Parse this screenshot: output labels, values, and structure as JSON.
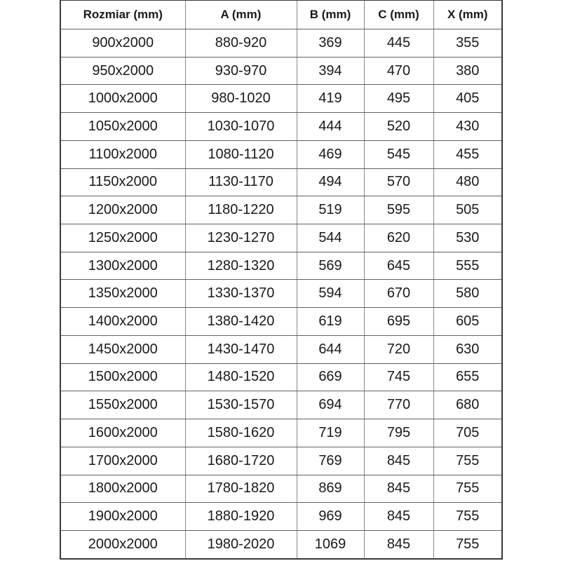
{
  "table": {
    "columns": [
      "Rozmiar (mm)",
      "A (mm)",
      "B (mm)",
      "C (mm)",
      "X (mm)"
    ],
    "rows": [
      [
        "900x2000",
        "880-920",
        "369",
        "445",
        "355"
      ],
      [
        "950x2000",
        "930-970",
        "394",
        "470",
        "380"
      ],
      [
        "1000x2000",
        "980-1020",
        "419",
        "495",
        "405"
      ],
      [
        "1050x2000",
        "1030-1070",
        "444",
        "520",
        "430"
      ],
      [
        "1100x2000",
        "1080-1120",
        "469",
        "545",
        "455"
      ],
      [
        "1150x2000",
        "1130-1170",
        "494",
        "570",
        "480"
      ],
      [
        "1200x2000",
        "1180-1220",
        "519",
        "595",
        "505"
      ],
      [
        "1250x2000",
        "1230-1270",
        "544",
        "620",
        "530"
      ],
      [
        "1300x2000",
        "1280-1320",
        "569",
        "645",
        "555"
      ],
      [
        "1350x2000",
        "1330-1370",
        "594",
        "670",
        "580"
      ],
      [
        "1400x2000",
        "1380-1420",
        "619",
        "695",
        "605"
      ],
      [
        "1450x2000",
        "1430-1470",
        "644",
        "720",
        "630"
      ],
      [
        "1500x2000",
        "1480-1520",
        "669",
        "745",
        "655"
      ],
      [
        "1550x2000",
        "1530-1570",
        "694",
        "770",
        "680"
      ],
      [
        "1600x2000",
        "1580-1620",
        "719",
        "795",
        "705"
      ],
      [
        "1700x2000",
        "1680-1720",
        "769",
        "845",
        "755"
      ],
      [
        "1800x2000",
        "1780-1820",
        "869",
        "845",
        "755"
      ],
      [
        "1900x2000",
        "1880-1920",
        "969",
        "845",
        "755"
      ],
      [
        "2000x2000",
        "1980-2020",
        "1069",
        "845",
        "755"
      ]
    ],
    "colors": {
      "background": "#ffffff",
      "text": "#1a1a1a",
      "border_outer": "#3a3a3a",
      "border_vertical": "#8a8a8a",
      "border_horizontal": "#606060"
    }
  }
}
